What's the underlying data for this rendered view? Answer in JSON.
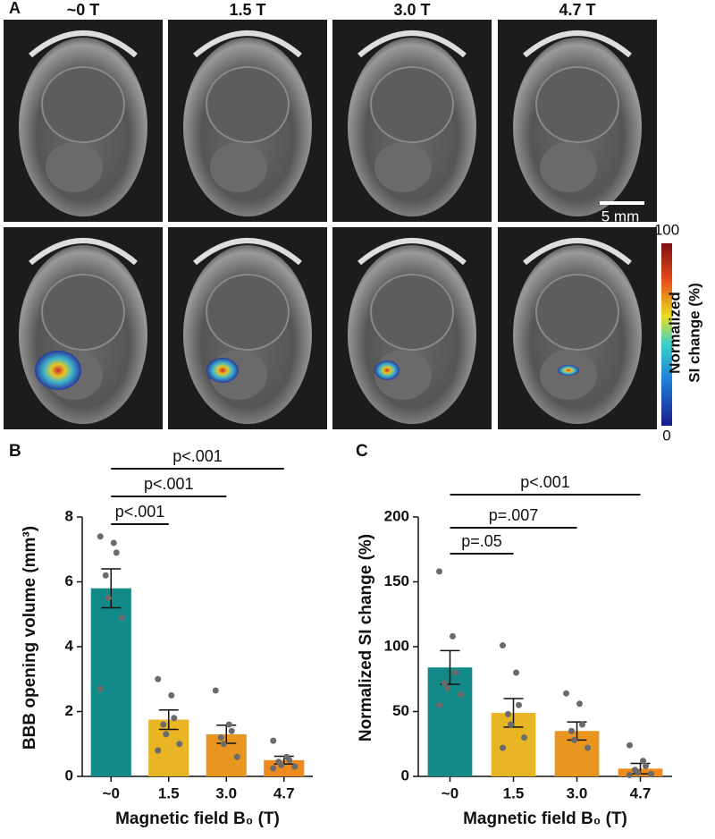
{
  "figure": {
    "panel_a": "A",
    "columns": [
      "~0 T",
      "1.5 T",
      "3.0 T",
      "4.7 T"
    ],
    "scale_bar": "5 mm",
    "colorbar": {
      "max": "100",
      "min": "0",
      "label": [
        "Normalized",
        "SI change (%)"
      ]
    }
  },
  "chart_data": [
    {
      "type": "bar",
      "panel": "B",
      "ylabel": "BBB opening volume (mm³)",
      "xlabel": "Magnetic field B₀ (T)",
      "categories": [
        "~0",
        "1.5",
        "3.0",
        "4.7"
      ],
      "values": [
        5.8,
        1.75,
        1.3,
        0.5
      ],
      "errors": [
        0.6,
        0.3,
        0.28,
        0.12
      ],
      "colors": [
        "#138a8a",
        "#e8b524",
        "#e8961f",
        "#ef8a1d"
      ],
      "points": [
        [
          7.4,
          7.2,
          6.9,
          6.2,
          5.5,
          4.9,
          2.7
        ],
        [
          3.0,
          2.5,
          1.8,
          1.6,
          1.3,
          1.0,
          0.8
        ],
        [
          2.65,
          1.6,
          1.4,
          1.2,
          1.0,
          0.6
        ],
        [
          1.1,
          0.6,
          0.5,
          0.45,
          0.35,
          0.3,
          0.25
        ]
      ],
      "ylim": [
        0,
        8
      ],
      "yticks": [
        0,
        2,
        4,
        6,
        8
      ],
      "comparisons": [
        {
          "groups": [
            "~0",
            "1.5"
          ],
          "label": "p<.001"
        },
        {
          "groups": [
            "~0",
            "3.0"
          ],
          "label": "p<.001"
        },
        {
          "groups": [
            "~0",
            "4.7"
          ],
          "label": "p<.001"
        }
      ]
    },
    {
      "type": "bar",
      "panel": "C",
      "ylabel": "Normalized SI change (%)",
      "xlabel": "Magnetic field B₀ (T)",
      "categories": [
        "~0",
        "1.5",
        "3.0",
        "4.7"
      ],
      "values": [
        84,
        49,
        35,
        6
      ],
      "errors": [
        13,
        11,
        7,
        4
      ],
      "colors": [
        "#138a8a",
        "#e8b524",
        "#e8961f",
        "#ef8a1d"
      ],
      "points": [
        [
          158,
          108,
          80,
          72,
          68,
          63,
          55
        ],
        [
          101,
          80,
          55,
          48,
          40,
          30,
          22
        ],
        [
          64,
          56,
          40,
          35,
          28,
          22
        ],
        [
          24,
          12,
          8,
          5,
          3,
          2,
          1
        ]
      ],
      "ylim": [
        0,
        200
      ],
      "yticks": [
        0,
        50,
        100,
        150,
        200
      ],
      "comparisons": [
        {
          "groups": [
            "~0",
            "1.5"
          ],
          "label": "p=.05"
        },
        {
          "groups": [
            "~0",
            "3.0"
          ],
          "label": "p=.007"
        },
        {
          "groups": [
            "~0",
            "4.7"
          ],
          "label": "p<.001"
        }
      ]
    }
  ]
}
